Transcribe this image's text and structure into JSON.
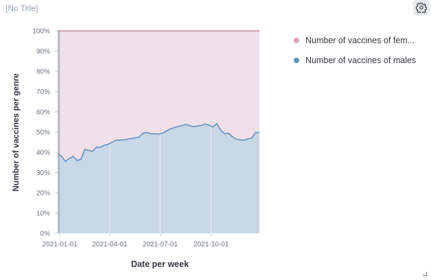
{
  "panel": {
    "title": "[No Title]",
    "settings_icon": "gear-icon"
  },
  "colors": {
    "female": "#d6a1bd",
    "male": "#6092c0"
  },
  "chart_data": {
    "type": "area",
    "stacked": true,
    "percentage": true,
    "xlabel": "Date per week",
    "ylabel": "Number of vaccines per genre",
    "y_ticks": [
      "0%",
      "10%",
      "20%",
      "30%",
      "40%",
      "50%",
      "60%",
      "70%",
      "80%",
      "90%",
      "100%"
    ],
    "x_ticks": [
      {
        "label": "2021-01-01",
        "date": "2021-01-01"
      },
      {
        "label": "2021-04-01",
        "date": "2021-04-01"
      },
      {
        "label": "2021-07-01",
        "date": "2021-07-01"
      },
      {
        "label": "2021-10-01",
        "date": "2021-10-01"
      }
    ],
    "ylim": [
      0,
      100
    ],
    "xlim": [
      "2020-12-28",
      "2021-12-27"
    ],
    "legend_position": "right",
    "series": [
      {
        "name": "Number of vaccines of females",
        "display_name": "Number of vaccines of fem...",
        "color": "#d6a1bd",
        "share": "remainder"
      },
      {
        "name": "Number of vaccines of males",
        "display_name": "Number of vaccines of males",
        "color": "#6092c0",
        "x": [
          "2020-12-28",
          "2021-01-04",
          "2021-01-11",
          "2021-01-18",
          "2021-01-25",
          "2021-02-01",
          "2021-02-08",
          "2021-02-15",
          "2021-02-22",
          "2021-03-01",
          "2021-03-08",
          "2021-03-15",
          "2021-03-22",
          "2021-03-29",
          "2021-04-05",
          "2021-04-12",
          "2021-04-19",
          "2021-04-26",
          "2021-05-03",
          "2021-05-10",
          "2021-05-17",
          "2021-05-24",
          "2021-05-31",
          "2021-06-07",
          "2021-06-14",
          "2021-06-21",
          "2021-06-28",
          "2021-07-05",
          "2021-07-12",
          "2021-07-19",
          "2021-07-26",
          "2021-08-02",
          "2021-08-09",
          "2021-08-16",
          "2021-08-23",
          "2021-08-30",
          "2021-09-06",
          "2021-09-13",
          "2021-09-20",
          "2021-09-27",
          "2021-10-04",
          "2021-10-11",
          "2021-10-18",
          "2021-10-25",
          "2021-11-01",
          "2021-11-08",
          "2021-11-15",
          "2021-11-22",
          "2021-11-29",
          "2021-12-06",
          "2021-12-13",
          "2021-12-20",
          "2021-12-27"
        ],
        "values": [
          39.5,
          38,
          35.5,
          37,
          38,
          36,
          36.5,
          41.5,
          41,
          40.5,
          42.5,
          42.5,
          43.5,
          44,
          45,
          46,
          46,
          46.2,
          46.5,
          46.8,
          47.2,
          47.5,
          49.5,
          49.8,
          49.2,
          49.2,
          49,
          49.5,
          50.5,
          51.5,
          52.2,
          52.8,
          53.2,
          53.8,
          53.2,
          52.7,
          53,
          53.3,
          54,
          53.5,
          52.5,
          54.2,
          51,
          49.2,
          49.5,
          47.8,
          46.5,
          46.2,
          46,
          46.7,
          47,
          49.8,
          49.8
        ]
      }
    ]
  }
}
